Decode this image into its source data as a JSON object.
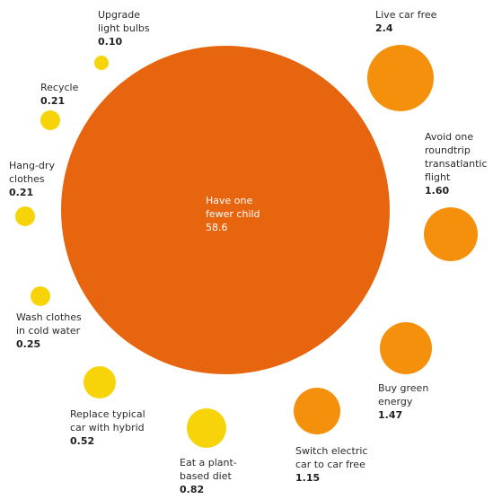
{
  "chart_data": {
    "type": "bubble",
    "title": "",
    "colors": {
      "large": "#e8650f",
      "orange": "#f4900c",
      "yellow": "#f7d40a"
    },
    "items": [
      {
        "name": "Upgrade\nlight bulbs",
        "value_label": "0.10",
        "value": 0.1,
        "color": "yellow"
      },
      {
        "name": "Recycle",
        "value_label": "0.21",
        "value": 0.21,
        "color": "yellow"
      },
      {
        "name": "Hang-dry\nclothes",
        "value_label": "0.21",
        "value": 0.21,
        "color": "yellow"
      },
      {
        "name": "Wash clothes\nin cold water",
        "value_label": "0.25",
        "value": 0.25,
        "color": "yellow"
      },
      {
        "name": "Replace typical\ncar with hybrid",
        "value_label": "0.52",
        "value": 0.52,
        "color": "yellow"
      },
      {
        "name": "Eat a plant-\nbased diet",
        "value_label": "0.82",
        "value": 0.82,
        "color": "yellow"
      },
      {
        "name": "Switch electric\ncar to car free",
        "value_label": "1.15",
        "value": 1.15,
        "color": "orange"
      },
      {
        "name": "Buy green\nenergy",
        "value_label": "1.47",
        "value": 1.47,
        "color": "orange"
      },
      {
        "name": "Avoid one\nroundtrip\ntransatlantic\nflight",
        "value_label": "1.60",
        "value": 1.6,
        "color": "orange"
      },
      {
        "name": "Live car free",
        "value_label": "2.4",
        "value": 2.4,
        "color": "orange"
      },
      {
        "name": "Have one\nfewer child",
        "value_label": "58.6",
        "value": 58.6,
        "color": "large"
      }
    ]
  }
}
